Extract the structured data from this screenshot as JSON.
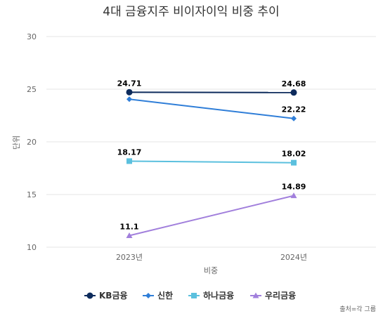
{
  "chart_data": {
    "type": "line",
    "title": "4대 금융지주 비이자이익 비중 추이",
    "xlabel": "비중",
    "ylabel": "단위",
    "categories": [
      "2023년",
      "2024년"
    ],
    "ylim": [
      10,
      30
    ],
    "yticks": [
      10,
      15,
      20,
      25,
      30
    ],
    "grid": true,
    "legend_position": "bottom",
    "series": [
      {
        "name": "KB금융",
        "values": [
          24.71,
          24.68
        ],
        "color": "#0d2b5c",
        "marker": "circle",
        "labels": true
      },
      {
        "name": "신한",
        "values": [
          24.05,
          22.22
        ],
        "color": "#2f7ed8",
        "marker": "diamond",
        "labels": [
          false,
          true
        ]
      },
      {
        "name": "하나금융",
        "values": [
          18.17,
          18.02
        ],
        "color": "#5bc0de",
        "marker": "square",
        "labels": true
      },
      {
        "name": "우리금융",
        "values": [
          11.1,
          14.89
        ],
        "color": "#a17fdc",
        "marker": "triangle",
        "labels": true
      }
    ],
    "source": "출처=각 그룹"
  }
}
